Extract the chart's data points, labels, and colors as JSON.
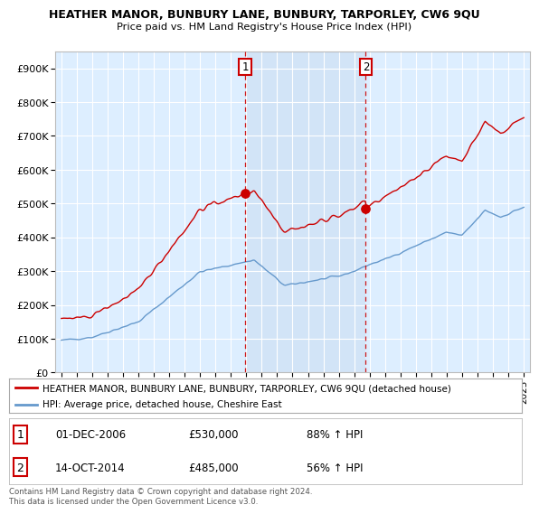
{
  "title": "HEATHER MANOR, BUNBURY LANE, BUNBURY, TARPORLEY, CW6 9QU",
  "subtitle": "Price paid vs. HM Land Registry's House Price Index (HPI)",
  "red_label": "HEATHER MANOR, BUNBURY LANE, BUNBURY, TARPORLEY, CW6 9QU (detached house)",
  "blue_label": "HPI: Average price, detached house, Cheshire East",
  "sale1_date": "01-DEC-2006",
  "sale1_price": 530000,
  "sale1_hpi": "88% ↑ HPI",
  "sale2_date": "14-OCT-2014",
  "sale2_price": 485000,
  "sale2_hpi": "56% ↑ HPI",
  "footer": "Contains HM Land Registry data © Crown copyright and database right 2024.\nThis data is licensed under the Open Government Licence v3.0.",
  "ylim": [
    0,
    950000
  ],
  "yticks": [
    0,
    100000,
    200000,
    300000,
    400000,
    500000,
    600000,
    700000,
    800000,
    900000
  ],
  "ytick_labels": [
    "£0",
    "£100K",
    "£200K",
    "£300K",
    "£400K",
    "£500K",
    "£600K",
    "£700K",
    "£800K",
    "£900K"
  ],
  "red_color": "#cc0000",
  "blue_color": "#6699cc",
  "sale_vline_color": "#cc0000",
  "highlight_color": "#ddeeff",
  "background_color": "#ddeeff",
  "plot_bg": "#ffffff",
  "sale1_t": 2006.917,
  "sale2_t": 2014.75
}
